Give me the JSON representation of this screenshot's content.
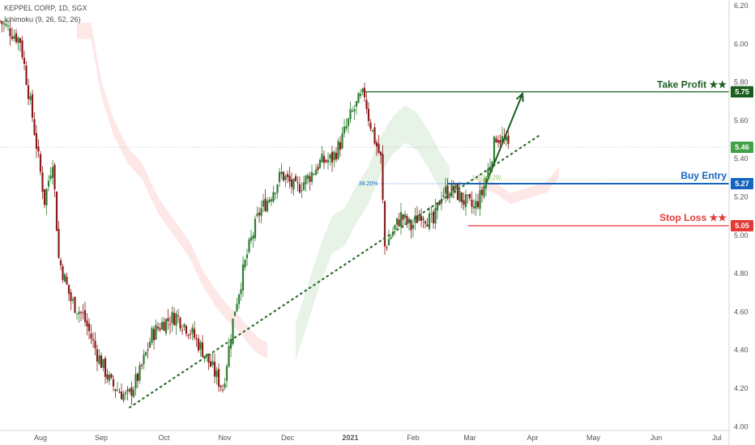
{
  "header": {
    "symbol": "KEPPEL CORP, 1D, SGX",
    "indicator": "Ichimoku (9, 26, 52, 26)"
  },
  "chart_data": {
    "type": "candlestick",
    "y_ticks": [
      4.0,
      4.2,
      4.4,
      4.6,
      4.8,
      5.0,
      5.2,
      5.4,
      5.6,
      5.8,
      6.0,
      6.2
    ],
    "y_tick_labels": [
      "4.00",
      "4.20",
      "4.40",
      "4.60",
      "4.80",
      "5.00",
      "5.20",
      "5.40",
      "5.60",
      "5.80",
      "6.00",
      "6.20"
    ],
    "ylim": [
      3.98,
      6.23
    ],
    "x_labels": [
      "Aug",
      "Sep",
      "Oct",
      "Nov",
      "Dec",
      "2021",
      "Feb",
      "Mar",
      "Apr",
      "May",
      "Jun",
      "Jul"
    ],
    "x_label_day_index": [
      20,
      50,
      81,
      111,
      142,
      173,
      204,
      232,
      263,
      293,
      324,
      354
    ],
    "last_day_index": 267,
    "candles_anchor_close": [
      [
        0,
        6.12
      ],
      [
        10,
        6.02
      ],
      [
        16,
        5.62
      ],
      [
        22,
        5.18
      ],
      [
        26,
        5.4
      ],
      [
        29,
        4.88
      ],
      [
        35,
        4.66
      ],
      [
        41,
        4.58
      ],
      [
        48,
        4.38
      ],
      [
        55,
        4.22
      ],
      [
        63,
        4.15
      ],
      [
        69,
        4.28
      ],
      [
        75,
        4.48
      ],
      [
        80,
        4.54
      ],
      [
        87,
        4.58
      ],
      [
        94,
        4.5
      ],
      [
        100,
        4.4
      ],
      [
        106,
        4.28
      ],
      [
        110,
        4.2
      ],
      [
        116,
        4.62
      ],
      [
        122,
        4.9
      ],
      [
        128,
        5.12
      ],
      [
        133,
        5.2
      ],
      [
        139,
        5.32
      ],
      [
        146,
        5.24
      ],
      [
        152,
        5.3
      ],
      [
        158,
        5.38
      ],
      [
        164,
        5.4
      ],
      [
        168,
        5.48
      ],
      [
        173,
        5.62
      ],
      [
        177,
        5.7
      ],
      [
        180,
        5.74
      ],
      [
        182,
        5.62
      ],
      [
        185,
        5.5
      ],
      [
        188,
        5.4
      ],
      [
        190,
        4.94
      ],
      [
        194,
        5.02
      ],
      [
        198,
        5.1
      ],
      [
        203,
        5.04
      ],
      [
        208,
        5.12
      ],
      [
        214,
        5.06
      ],
      [
        218,
        5.22
      ],
      [
        224,
        5.24
      ],
      [
        229,
        5.18
      ],
      [
        234,
        5.14
      ],
      [
        238,
        5.22
      ],
      [
        242,
        5.38
      ],
      [
        245,
        5.52
      ],
      [
        248,
        5.5
      ],
      [
        251,
        5.46
      ]
    ],
    "cloud": {
      "pink": [
        [
          38,
          6.05
        ],
        [
          45,
          6.05
        ],
        [
          50,
          5.75
        ],
        [
          56,
          5.55
        ],
        [
          63,
          5.4
        ],
        [
          70,
          5.32
        ],
        [
          78,
          5.14
        ],
        [
          86,
          5.02
        ],
        [
          94,
          4.9
        ],
        [
          100,
          4.76
        ],
        [
          106,
          4.66
        ],
        [
          112,
          4.58
        ],
        [
          118,
          4.52
        ],
        [
          124,
          4.44
        ],
        [
          128,
          4.4
        ],
        [
          132,
          4.38
        ]
      ],
      "green": [
        [
          146,
          4.4
        ],
        [
          152,
          4.6
        ],
        [
          158,
          4.8
        ],
        [
          164,
          4.96
        ],
        [
          170,
          5.0
        ],
        [
          176,
          5.12
        ],
        [
          182,
          5.22
        ],
        [
          188,
          5.38
        ],
        [
          194,
          5.48
        ],
        [
          200,
          5.54
        ],
        [
          206,
          5.5
        ],
        [
          212,
          5.4
        ],
        [
          218,
          5.28
        ],
        [
          222,
          5.22
        ]
      ],
      "pink2": [
        [
          236,
          5.26
        ],
        [
          244,
          5.24
        ],
        [
          252,
          5.18
        ],
        [
          258,
          5.2
        ],
        [
          264,
          5.22
        ],
        [
          270,
          5.24
        ],
        [
          276,
          5.32
        ]
      ]
    },
    "levels": {
      "take_profit": 5.75,
      "buy_entry": 5.27,
      "stop_loss": 5.05,
      "current": 5.46,
      "fib_38": 5.27,
      "ext_1272": 5.29
    },
    "trendline": {
      "start": [
        64,
        4.1
      ],
      "end": [
        266,
        5.52
      ]
    },
    "projection_arrow": {
      "start": [
        240,
        5.27
      ],
      "end": [
        258,
        5.74
      ]
    },
    "annotations": {
      "take_profit_label": "Take Profit ★★",
      "buy_entry_label": "Buy Entry",
      "stop_loss_label": "Stop Loss ★★",
      "fib_label": "38.20%",
      "ext_label": "1.272(5.29)"
    },
    "price_badges": {
      "take_profit": "5.75",
      "current": "5.46",
      "buy_entry": "5.27",
      "stop_loss": "5.05"
    },
    "colors": {
      "up": "#2e7d32",
      "down": "#8b1a1a",
      "take_profit": "#1b5e20",
      "buy_entry": "#1565c0",
      "stop_loss": "#e53935",
      "trendline": "#2e6b2e",
      "cloud_pink": "#fde3e3",
      "cloud_green": "#e3f1e3",
      "current_badge": "#43a047",
      "fib": "#1565c0",
      "ext": "#8bc34a"
    }
  }
}
